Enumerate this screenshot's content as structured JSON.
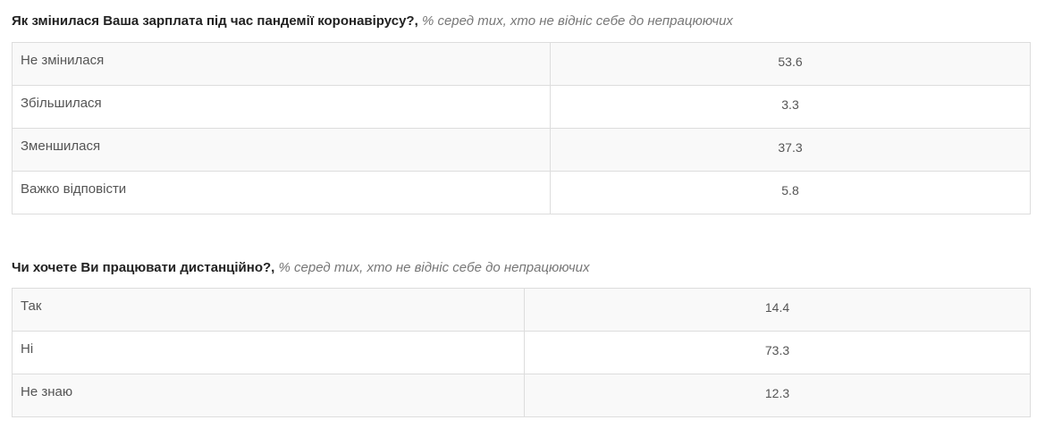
{
  "tables": [
    {
      "question": "Як змінилася Ваша зарплата під час пандемії коронавірусу?",
      "note": "% серед тих, хто не відніс себе до непрацюючих",
      "rows": [
        {
          "label": "Не змінилася",
          "value": "53.6"
        },
        {
          "label": "Збільшилася",
          "value": "3.3"
        },
        {
          "label": "Зменшилася",
          "value": "37.3"
        },
        {
          "label": "Важко відповісти",
          "value": "5.8"
        }
      ]
    },
    {
      "question": "Чи хочете Ви працювати дистанційно?",
      "note": "% серед тих, хто не відніс себе до непрацюючих",
      "rows": [
        {
          "label": "Так",
          "value": "14.4"
        },
        {
          "label": "Ні",
          "value": "73.3"
        },
        {
          "label": "Не знаю",
          "value": "12.3"
        }
      ]
    }
  ]
}
